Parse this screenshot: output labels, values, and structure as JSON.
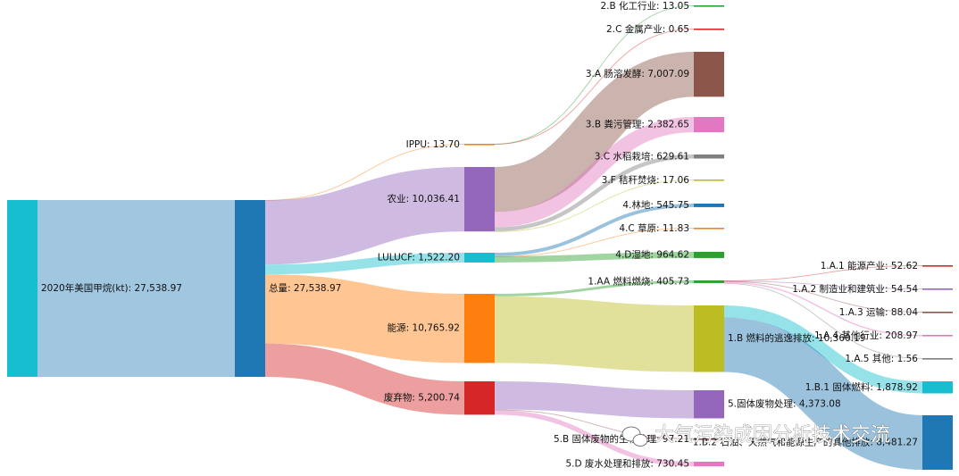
{
  "chart_data": {
    "type": "sankey",
    "title": "",
    "nodes": [
      {
        "id": "src",
        "label": "2020年美国甲烷(kt)",
        "value": "27,538.97",
        "color": "#17becf"
      },
      {
        "id": "tot",
        "label": "总量",
        "value": "27,538.97",
        "color": "#1f77b4"
      },
      {
        "id": "ippu",
        "label": "IPPU",
        "value": "13.70",
        "color": "#ff7f0e"
      },
      {
        "id": "agr",
        "label": "农业",
        "value": "10,036.41",
        "color": "#9467bd"
      },
      {
        "id": "lul",
        "label": "LULUCF",
        "value": "1,522.20",
        "color": "#17becf"
      },
      {
        "id": "ene",
        "label": "能源",
        "value": "10,765.92",
        "color": "#ff7f0e"
      },
      {
        "id": "was",
        "label": "废弃物",
        "value": "5,200.74",
        "color": "#d62728"
      },
      {
        "id": "2b",
        "label": "2.B 化工行业",
        "value": "13.05",
        "color": "#2ca02c"
      },
      {
        "id": "2c",
        "label": "2.C 金属产业",
        "value": "0.65",
        "color": "#d62728"
      },
      {
        "id": "3a",
        "label": "3.A 肠溶发酵",
        "value": "7,007.09",
        "color": "#8c564b"
      },
      {
        "id": "3b",
        "label": "3.B 粪污管理",
        "value": "2,382.65",
        "color": "#e377c2"
      },
      {
        "id": "3c",
        "label": "3.C 水稻栽培",
        "value": "629.61",
        "color": "#7f7f7f"
      },
      {
        "id": "3f",
        "label": "3.F 秸秆焚烧",
        "value": "17.06",
        "color": "#bcbd22"
      },
      {
        "id": "4",
        "label": "4.林地",
        "value": "545.75",
        "color": "#1f77b4"
      },
      {
        "id": "4c",
        "label": "4.C 草原",
        "value": "11.83",
        "color": "#ff7f0e"
      },
      {
        "id": "4d",
        "label": "4.D湿地",
        "value": "964.62",
        "color": "#2ca02c"
      },
      {
        "id": "1aa",
        "label": "1.AA 燃料燃烧",
        "value": "405.73",
        "color": "#2ca02c"
      },
      {
        "id": "1b",
        "label": "1.B 燃料的逃逸排放",
        "value": "10,360.19",
        "color": "#bcbd22"
      },
      {
        "id": "5s",
        "label": "5.固体废物处理",
        "value": "4,373.08",
        "color": "#9467bd"
      },
      {
        "id": "5b",
        "label": "5.B 固体废物的生物处理",
        "value": "97.21",
        "color": "#8c564b"
      },
      {
        "id": "5d",
        "label": "5.D 废水处理和排放",
        "value": "730.45",
        "color": "#e377c2"
      },
      {
        "id": "1a1",
        "label": "1.A.1 能源产业",
        "value": "52.62",
        "color": "#d62728"
      },
      {
        "id": "1a2",
        "label": "1.A.2 制造业和建筑业",
        "value": "54.54",
        "color": "#9467bd"
      },
      {
        "id": "1a3",
        "label": "1.A.3 运输",
        "value": "88.04",
        "color": "#8c564b"
      },
      {
        "id": "1a4",
        "label": "1.A.4 其他行业",
        "value": "208.97",
        "color": "#e377c2"
      },
      {
        "id": "1a5",
        "label": "1.A.5 其他",
        "value": "1.56",
        "color": "#7f7f7f"
      },
      {
        "id": "1b1",
        "label": "1.B.1 固体燃料",
        "value": "1,878.92",
        "color": "#17becf"
      },
      {
        "id": "1b2",
        "label": "1.B.2 石油、天然气和能源生产的其他排放",
        "value": "8,481.27",
        "color": "#1f77b4"
      }
    ],
    "links": [
      {
        "source": "src",
        "target": "tot",
        "value": 27538.97
      },
      {
        "source": "tot",
        "target": "ippu",
        "value": 13.7
      },
      {
        "source": "tot",
        "target": "agr",
        "value": 10036.41
      },
      {
        "source": "tot",
        "target": "lul",
        "value": 1522.2
      },
      {
        "source": "tot",
        "target": "ene",
        "value": 10765.92
      },
      {
        "source": "tot",
        "target": "was",
        "value": 5200.74
      },
      {
        "source": "ippu",
        "target": "2b",
        "value": 13.05
      },
      {
        "source": "ippu",
        "target": "2c",
        "value": 0.65
      },
      {
        "source": "agr",
        "target": "3a",
        "value": 7007.09
      },
      {
        "source": "agr",
        "target": "3b",
        "value": 2382.65
      },
      {
        "source": "agr",
        "target": "3c",
        "value": 629.61
      },
      {
        "source": "agr",
        "target": "3f",
        "value": 17.06
      },
      {
        "source": "lul",
        "target": "4",
        "value": 545.75
      },
      {
        "source": "lul",
        "target": "4c",
        "value": 11.83
      },
      {
        "source": "lul",
        "target": "4d",
        "value": 964.62
      },
      {
        "source": "ene",
        "target": "1aa",
        "value": 405.73
      },
      {
        "source": "ene",
        "target": "1b",
        "value": 10360.19
      },
      {
        "source": "was",
        "target": "5s",
        "value": 4373.08
      },
      {
        "source": "was",
        "target": "5b",
        "value": 97.21
      },
      {
        "source": "was",
        "target": "5d",
        "value": 730.45
      },
      {
        "source": "1aa",
        "target": "1a1",
        "value": 52.62
      },
      {
        "source": "1aa",
        "target": "1a2",
        "value": 54.54
      },
      {
        "source": "1aa",
        "target": "1a3",
        "value": 88.04
      },
      {
        "source": "1aa",
        "target": "1a4",
        "value": 208.97
      },
      {
        "source": "1aa",
        "target": "1a5",
        "value": 1.56
      },
      {
        "source": "1b",
        "target": "1b1",
        "value": 1878.92
      },
      {
        "source": "1b",
        "target": "1b2",
        "value": 8481.27
      }
    ]
  },
  "watermark": "大气污染成因分析技术交流"
}
